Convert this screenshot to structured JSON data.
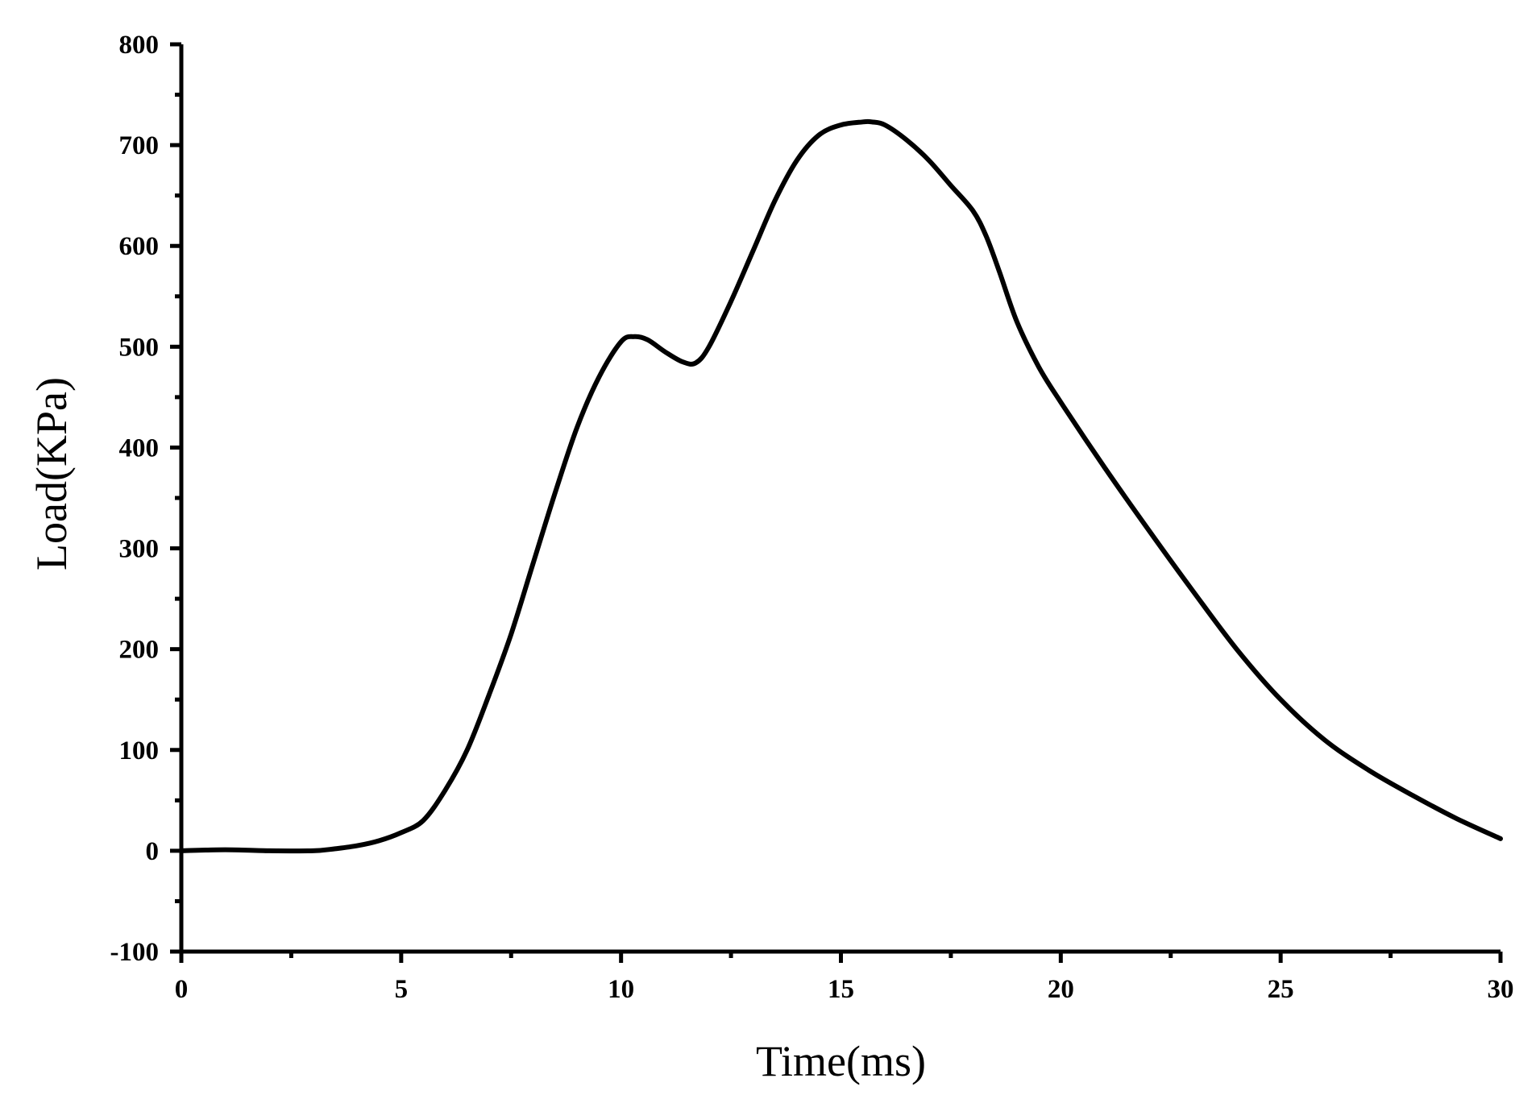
{
  "chart_data": {
    "type": "line",
    "title": "",
    "xlabel": "Time(ms)",
    "ylabel": "Load(KPa)",
    "xlim": [
      0,
      30
    ],
    "ylim": [
      -100,
      800
    ],
    "xticks": [
      0,
      5,
      10,
      15,
      20,
      25,
      30
    ],
    "yticks": [
      -100,
      0,
      100,
      200,
      300,
      400,
      500,
      600,
      700,
      800
    ],
    "grid": false,
    "legend": "none",
    "line_color": "#000000",
    "series": [
      {
        "x": [
          0,
          1,
          2,
          3,
          3.5,
          4,
          4.5,
          5,
          5.5,
          6,
          6.5,
          7,
          7.5,
          8,
          8.5,
          9,
          9.5,
          10,
          10.3,
          10.6,
          11,
          11.4,
          11.7,
          12,
          12.5,
          13,
          13.5,
          14,
          14.5,
          15,
          15.5,
          15.7,
          16,
          16.5,
          17,
          17.5,
          18,
          18.3,
          18.6,
          19,
          19.5,
          20,
          21,
          22,
          23,
          24,
          25,
          26,
          27,
          28,
          29,
          30
        ],
        "y": [
          0,
          1,
          0,
          0,
          2,
          5,
          10,
          18,
          30,
          60,
          100,
          155,
          215,
          285,
          355,
          420,
          470,
          505,
          510,
          507,
          495,
          485,
          484,
          500,
          545,
          595,
          645,
          685,
          710,
          720,
          723,
          723,
          720,
          705,
          685,
          660,
          635,
          610,
          575,
          525,
          480,
          445,
          380,
          318,
          258,
          200,
          150,
          110,
          80,
          55,
          32,
          12
        ]
      }
    ]
  }
}
